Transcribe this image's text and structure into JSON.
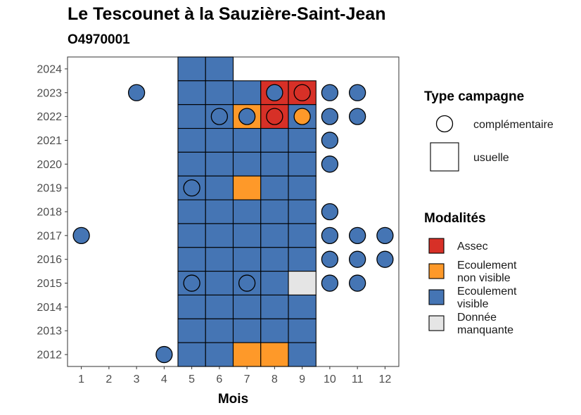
{
  "chart_data": {
    "type": "heatmap",
    "title": "Le Tescounet à la Sauzière-Saint-Jean",
    "subtitle": "O4970001",
    "xlabel": "Mois",
    "ylabel": "",
    "x_ticks": [
      1,
      2,
      3,
      4,
      5,
      6,
      7,
      8,
      9,
      10,
      11,
      12
    ],
    "y_ticks": [
      2012,
      2013,
      2014,
      2015,
      2016,
      2017,
      2018,
      2019,
      2020,
      2021,
      2022,
      2023,
      2024
    ],
    "xlim": [
      0.5,
      12.5
    ],
    "ylim": [
      2011.5,
      2024.5
    ],
    "grid": false,
    "legend": {
      "placement": "right",
      "shape_title": "Type campagne",
      "shapes": [
        {
          "key": "complementaire",
          "label": "complémentaire"
        },
        {
          "key": "usuelle",
          "label": "usuelle"
        }
      ],
      "color_title": "Modalités",
      "modalites": [
        {
          "key": "assec",
          "lines": [
            "Assec"
          ],
          "color": "#d73027"
        },
        {
          "key": "ecoulement_non_visible",
          "lines": [
            "Ecoulement",
            "non visible"
          ],
          "color": "#fe9929"
        },
        {
          "key": "ecoulement_visible",
          "lines": [
            "Ecoulement",
            "visible"
          ],
          "color": "#4575b4"
        },
        {
          "key": "donnee_manquante",
          "lines": [
            "Donnée",
            "manquante"
          ],
          "color": "#e5e5e5"
        }
      ]
    },
    "usuelle": [
      {
        "year": 2024,
        "months": [
          "ecoulement_visible",
          "ecoulement_visible",
          null,
          null,
          null
        ],
        "start_month": 5
      },
      {
        "year": 2023,
        "months": [
          "ecoulement_visible",
          "ecoulement_visible",
          "ecoulement_visible",
          "assec",
          "assec"
        ],
        "start_month": 5
      },
      {
        "year": 2022,
        "months": [
          "ecoulement_visible",
          "ecoulement_visible",
          "ecoulement_non_visible",
          "assec",
          "ecoulement_visible"
        ],
        "start_month": 5
      },
      {
        "year": 2021,
        "months": [
          "ecoulement_visible",
          "ecoulement_visible",
          "ecoulement_visible",
          "ecoulement_visible",
          "ecoulement_visible"
        ],
        "start_month": 5
      },
      {
        "year": 2020,
        "months": [
          "ecoulement_visible",
          "ecoulement_visible",
          "ecoulement_visible",
          "ecoulement_visible",
          "ecoulement_visible"
        ],
        "start_month": 5
      },
      {
        "year": 2019,
        "months": [
          "ecoulement_visible",
          "ecoulement_visible",
          "ecoulement_non_visible",
          "ecoulement_visible",
          "ecoulement_visible"
        ],
        "start_month": 5
      },
      {
        "year": 2018,
        "months": [
          "ecoulement_visible",
          "ecoulement_visible",
          "ecoulement_visible",
          "ecoulement_visible",
          "ecoulement_visible"
        ],
        "start_month": 5
      },
      {
        "year": 2017,
        "months": [
          "ecoulement_visible",
          "ecoulement_visible",
          "ecoulement_visible",
          "ecoulement_visible",
          "ecoulement_visible"
        ],
        "start_month": 5
      },
      {
        "year": 2016,
        "months": [
          "ecoulement_visible",
          "ecoulement_visible",
          "ecoulement_visible",
          "ecoulement_visible",
          "ecoulement_visible"
        ],
        "start_month": 5
      },
      {
        "year": 2015,
        "months": [
          "ecoulement_visible",
          "ecoulement_visible",
          "ecoulement_visible",
          "ecoulement_visible",
          "donnee_manquante"
        ],
        "start_month": 5
      },
      {
        "year": 2014,
        "months": [
          "ecoulement_visible",
          "ecoulement_visible",
          "ecoulement_visible",
          "ecoulement_visible",
          "ecoulement_visible"
        ],
        "start_month": 5
      },
      {
        "year": 2013,
        "months": [
          "ecoulement_visible",
          "ecoulement_visible",
          "ecoulement_visible",
          "ecoulement_visible",
          "ecoulement_visible"
        ],
        "start_month": 5
      },
      {
        "year": 2012,
        "months": [
          "ecoulement_visible",
          "ecoulement_visible",
          "ecoulement_non_visible",
          "ecoulement_non_visible",
          "ecoulement_visible"
        ],
        "start_month": 5
      }
    ],
    "complementaire": [
      {
        "year": 2023,
        "month": 3,
        "modalite": "ecoulement_visible"
      },
      {
        "year": 2023,
        "month": 8,
        "modalite": "ecoulement_visible"
      },
      {
        "year": 2023,
        "month": 9,
        "modalite": "assec"
      },
      {
        "year": 2023,
        "month": 10,
        "modalite": "ecoulement_visible"
      },
      {
        "year": 2023,
        "month": 11,
        "modalite": "ecoulement_visible"
      },
      {
        "year": 2022,
        "month": 6,
        "modalite": "ecoulement_visible"
      },
      {
        "year": 2022,
        "month": 7,
        "modalite": "ecoulement_visible"
      },
      {
        "year": 2022,
        "month": 8,
        "modalite": "assec"
      },
      {
        "year": 2022,
        "month": 9,
        "modalite": "ecoulement_non_visible"
      },
      {
        "year": 2022,
        "month": 10,
        "modalite": "ecoulement_visible"
      },
      {
        "year": 2022,
        "month": 11,
        "modalite": "ecoulement_visible"
      },
      {
        "year": 2021,
        "month": 10,
        "modalite": "ecoulement_visible"
      },
      {
        "year": 2020,
        "month": 10,
        "modalite": "ecoulement_visible"
      },
      {
        "year": 2019,
        "month": 5,
        "modalite": "ecoulement_visible"
      },
      {
        "year": 2018,
        "month": 10,
        "modalite": "ecoulement_visible"
      },
      {
        "year": 2017,
        "month": 1,
        "modalite": "ecoulement_visible"
      },
      {
        "year": 2017,
        "month": 10,
        "modalite": "ecoulement_visible"
      },
      {
        "year": 2017,
        "month": 11,
        "modalite": "ecoulement_visible"
      },
      {
        "year": 2017,
        "month": 12,
        "modalite": "ecoulement_visible"
      },
      {
        "year": 2016,
        "month": 10,
        "modalite": "ecoulement_visible"
      },
      {
        "year": 2016,
        "month": 11,
        "modalite": "ecoulement_visible"
      },
      {
        "year": 2016,
        "month": 12,
        "modalite": "ecoulement_visible"
      },
      {
        "year": 2015,
        "month": 5,
        "modalite": "ecoulement_visible"
      },
      {
        "year": 2015,
        "month": 7,
        "modalite": "ecoulement_visible"
      },
      {
        "year": 2015,
        "month": 10,
        "modalite": "ecoulement_visible"
      },
      {
        "year": 2015,
        "month": 11,
        "modalite": "ecoulement_visible"
      },
      {
        "year": 2012,
        "month": 4,
        "modalite": "ecoulement_visible"
      }
    ]
  }
}
